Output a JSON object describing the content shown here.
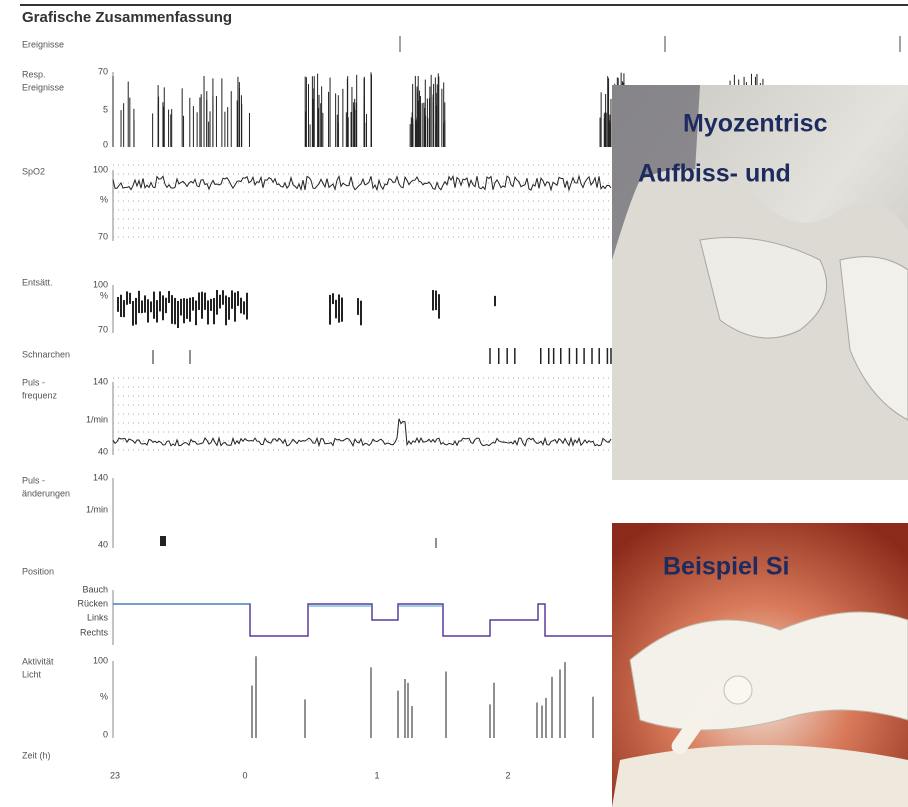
{
  "header": {
    "title": "Grafische Zusammenfassung"
  },
  "panels": [
    {
      "label": [
        "Ereignisse"
      ],
      "ticks": []
    },
    {
      "label": [
        "Resp.",
        "Ereignisse"
      ],
      "ticks": [
        70,
        5,
        0
      ]
    },
    {
      "label": [
        "SpO2"
      ],
      "ticks": [
        100,
        "%",
        70
      ]
    },
    {
      "label": [
        "Entsätt."
      ],
      "ticks": [
        100,
        "%",
        70
      ]
    },
    {
      "label": [
        "Schnarchen"
      ],
      "ticks": []
    },
    {
      "label": [
        "Puls -",
        "frequenz"
      ],
      "ticks": [
        140,
        "1/min",
        40
      ]
    },
    {
      "label": [
        "Puls -",
        "änderungen"
      ],
      "ticks": [
        140,
        "1/min",
        40
      ]
    },
    {
      "label": [
        "Position"
      ],
      "ticks": [
        "Bauch",
        "Rücken",
        "Links",
        "Rechts"
      ]
    },
    {
      "label": [
        "Aktivität",
        "Licht"
      ],
      "ticks": [
        100,
        "%",
        0
      ]
    },
    {
      "label": [
        "Zeit (h)"
      ],
      "ticks": []
    }
  ],
  "time_axis": [
    23,
    0,
    1,
    2
  ],
  "photos": [
    {
      "lines": [
        "Myozentrisc",
        "Aufbiss- und"
      ]
    },
    {
      "lines": [
        "Beispiel Si"
      ]
    }
  ]
}
